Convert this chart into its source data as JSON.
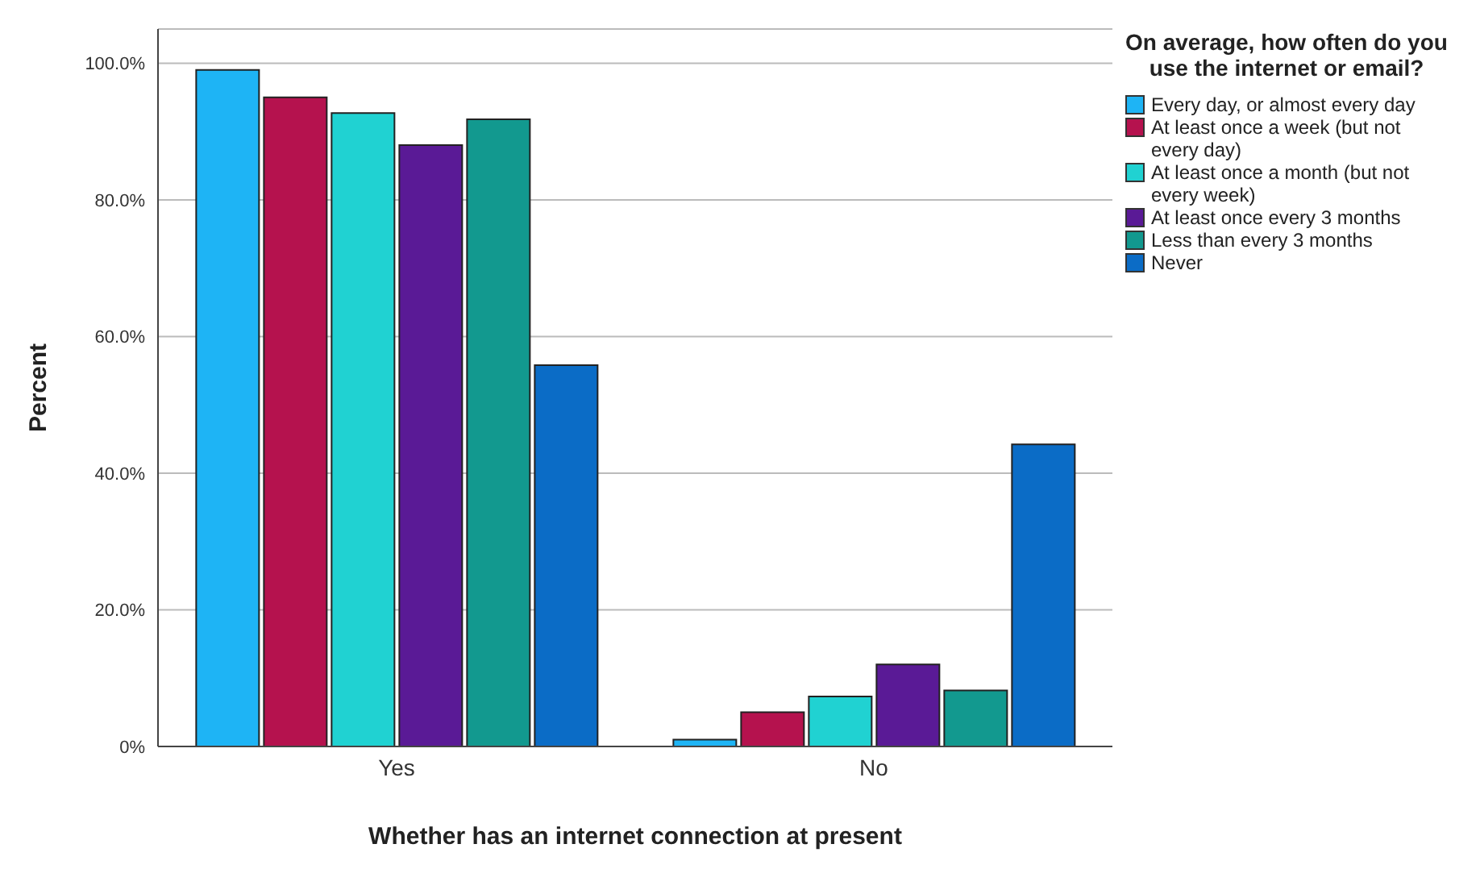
{
  "chart_data": {
    "type": "bar",
    "xlabel": "Whether has an internet connection at present",
    "ylabel": "Percent",
    "legend_title": "On average, how often do you use the internet or email?",
    "categories": [
      "Yes",
      "No"
    ],
    "series": [
      {
        "name": "Every day, or almost every day",
        "color": "#1eb4f5",
        "values": [
          99.0,
          1.0
        ]
      },
      {
        "name": "At least once a week (but not every day)",
        "color": "#b5124e",
        "values": [
          95.0,
          5.0
        ]
      },
      {
        "name": "At least once a month (but not every week)",
        "color": "#20d2d2",
        "values": [
          92.7,
          7.3
        ]
      },
      {
        "name": "At least once every 3 months",
        "color": "#5a1a96",
        "values": [
          88.0,
          12.0
        ]
      },
      {
        "name": "Less than every 3 months",
        "color": "#12998f",
        "values": [
          91.8,
          8.2
        ]
      },
      {
        "name": "Never",
        "color": "#0b6cc6",
        "values": [
          55.8,
          44.2
        ]
      }
    ],
    "ylim": [
      0,
      105
    ],
    "yticks": [
      {
        "value": 0,
        "label": "0%"
      },
      {
        "value": 20,
        "label": "20.0%"
      },
      {
        "value": 40,
        "label": "40.0%"
      },
      {
        "value": 60,
        "label": "60.0%"
      },
      {
        "value": 80,
        "label": "80.0%"
      },
      {
        "value": 100,
        "label": "100.0%"
      }
    ],
    "grid": "y",
    "legend": "top right"
  }
}
